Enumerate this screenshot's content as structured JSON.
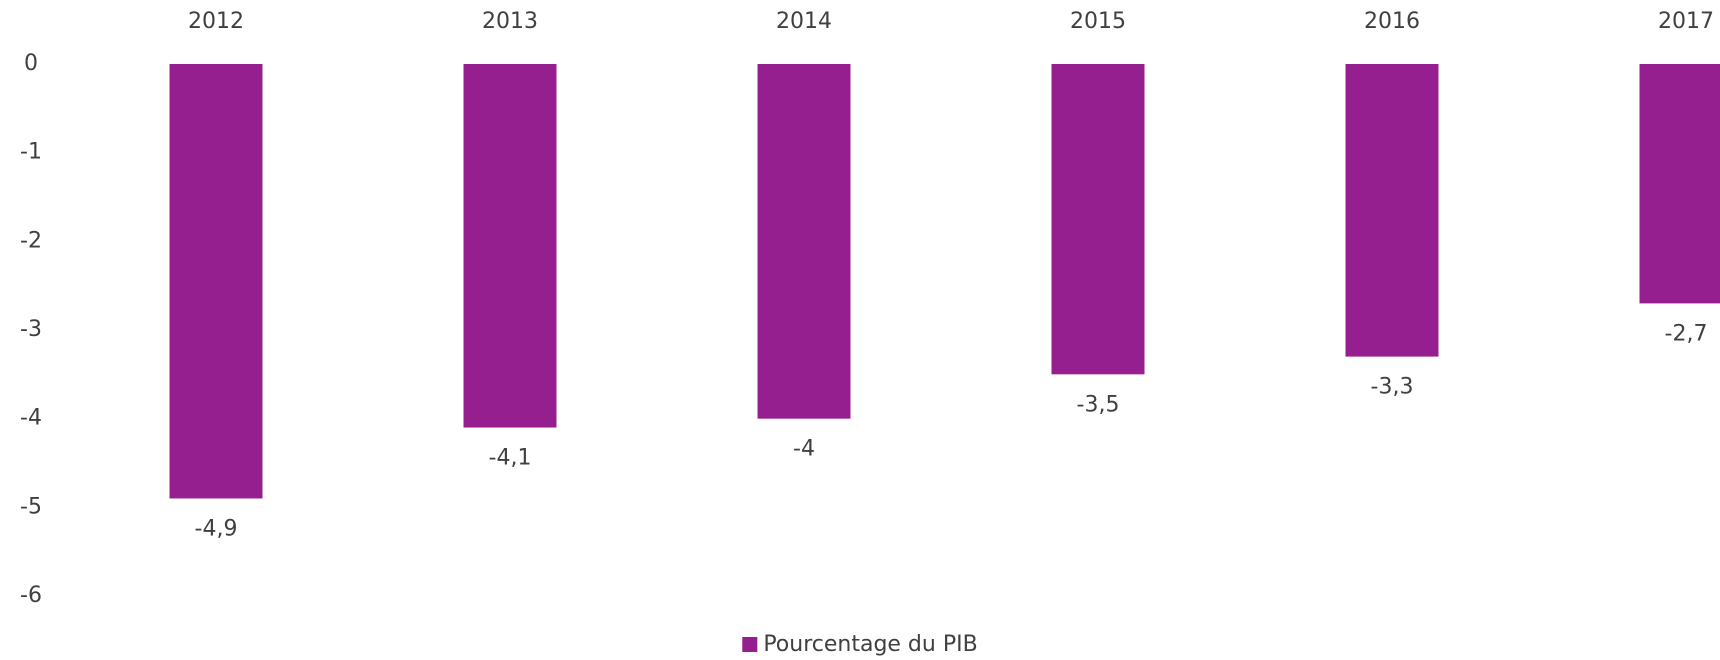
{
  "chart_data": {
    "type": "bar",
    "categories": [
      "2012",
      "2013",
      "2014",
      "2015",
      "2016",
      "2017"
    ],
    "series": [
      {
        "name": "Pourcentage du PIB",
        "color": "#951f8e",
        "values": [
          -4.9,
          -4.1,
          -4,
          -3.5,
          -3.3,
          -2.7
        ],
        "value_labels": [
          "-4,9",
          "-4,1",
          "-4",
          "-3,5",
          "-3,3",
          "-2,7"
        ]
      }
    ],
    "ylim": [
      -6,
      0
    ],
    "yticks": [
      0,
      -1,
      -2,
      -3,
      -4,
      -5,
      -6
    ],
    "grid": false,
    "legend": "bottom"
  }
}
